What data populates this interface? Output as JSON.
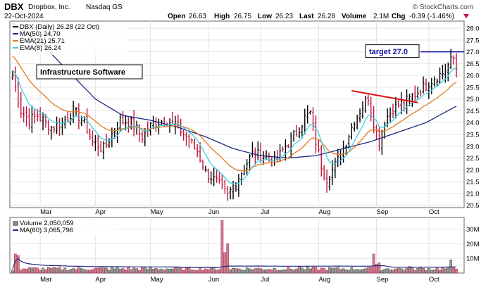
{
  "header": {
    "symbol": "DBX",
    "company": "Dropbox, Inc.",
    "exchange": "Nasdaq GS",
    "date": "22-Oct-2024",
    "watermark": "© StockCharts.com",
    "quote": {
      "open_label": "Open",
      "open": "26.63",
      "high_label": "High",
      "high": "26.75",
      "low_label": "Low",
      "low": "26.23",
      "last_label": "Last",
      "last": "26.28",
      "volume_label": "Volume",
      "volume": "2.1M",
      "chg_label": "Chg",
      "chg": "-0.39 (-1.46%)"
    }
  },
  "legend": [
    {
      "label": "DBX (Daily) 26.28 (22 Oct)",
      "color": "#000000"
    },
    {
      "label": "MA(50) 24.70",
      "color": "#1f2a80"
    },
    {
      "label": "EMA(21) 25.71",
      "color": "#e07a20"
    },
    {
      "label": "EMA(8) 26.24",
      "color": "#3ccfe0"
    }
  ],
  "annotations": {
    "infra_label": "Infrastructure Software",
    "target_label": "target 27.0"
  },
  "volume_legend": [
    {
      "label": "Volume 2,050,059",
      "color": "#000000"
    },
    {
      "label": "MA(60) 3,065,796",
      "color": "#1f2a80"
    }
  ],
  "colors": {
    "up": "#000000",
    "down": "#c0143c",
    "ma50": "#1f2a80",
    "ema21": "#e07a20",
    "ema8": "#3ccfe0",
    "trendline": "#e01010",
    "target_line": "#1010a0"
  },
  "chart_data": {
    "type": "ohlc",
    "price_axis": {
      "ylim": [
        20.4,
        28.3
      ],
      "ticks": [
        "20.5",
        "21.0",
        "21.5",
        "22.0",
        "22.5",
        "23.0",
        "23.5",
        "24.0",
        "24.5",
        "25.0",
        "25.5",
        "26.0",
        "26.5",
        "27.0",
        "27.5",
        "28.0"
      ]
    },
    "volume_axis": {
      "ylim": [
        0,
        38
      ],
      "ticks": [
        "10M",
        "20M",
        "30M"
      ]
    },
    "months": [
      "Mar",
      "Apr",
      "May",
      "Jun",
      "Jul",
      "Aug",
      "Sep",
      "Oct"
    ],
    "month_start_index": [
      10,
      30,
      50,
      71,
      90,
      111,
      132,
      151
    ],
    "n_sessions": 162,
    "close_anchors": [
      [
        0,
        26.0
      ],
      [
        3,
        24.5
      ],
      [
        6,
        24.1
      ],
      [
        9,
        24.3
      ],
      [
        14,
        23.8
      ],
      [
        18,
        24.0
      ],
      [
        22,
        24.5
      ],
      [
        26,
        24.0
      ],
      [
        29,
        23.2
      ],
      [
        33,
        22.9
      ],
      [
        36,
        23.5
      ],
      [
        39,
        24.1
      ],
      [
        43,
        24.0
      ],
      [
        47,
        23.4
      ],
      [
        51,
        24.0
      ],
      [
        56,
        24.1
      ],
      [
        60,
        23.8
      ],
      [
        63,
        23.4
      ],
      [
        67,
        22.8
      ],
      [
        70,
        21.9
      ],
      [
        74,
        21.5
      ],
      [
        76,
        21.2
      ],
      [
        78,
        20.9
      ],
      [
        81,
        21.5
      ],
      [
        84,
        22.1
      ],
      [
        87,
        22.7
      ],
      [
        91,
        22.6
      ],
      [
        95,
        22.3
      ],
      [
        99,
        23.0
      ],
      [
        103,
        23.6
      ],
      [
        106,
        24.2
      ],
      [
        108,
        24.4
      ],
      [
        110,
        23.2
      ],
      [
        112,
        22.2
      ],
      [
        114,
        21.6
      ],
      [
        116,
        22.0
      ],
      [
        118,
        22.4
      ],
      [
        121,
        23.2
      ],
      [
        124,
        24.1
      ],
      [
        127,
        24.7
      ],
      [
        129,
        25.1
      ],
      [
        131,
        24.0
      ],
      [
        133,
        23.2
      ],
      [
        135,
        24.1
      ],
      [
        138,
        24.6
      ],
      [
        141,
        24.8
      ],
      [
        144,
        25.0
      ],
      [
        147,
        25.3
      ],
      [
        150,
        25.6
      ],
      [
        153,
        25.9
      ],
      [
        156,
        26.1
      ],
      [
        159,
        26.6
      ],
      [
        160,
        26.7
      ],
      [
        161,
        26.28
      ]
    ],
    "series": [
      {
        "name": "DBX (Daily)",
        "last": 26.28
      },
      {
        "name": "MA(50)",
        "last": 24.7,
        "anchors": [
          [
            0,
            28.2
          ],
          [
            10,
            27.4
          ],
          [
            20,
            26.2
          ],
          [
            30,
            25.0
          ],
          [
            40,
            24.3
          ],
          [
            50,
            24.1
          ],
          [
            60,
            23.8
          ],
          [
            70,
            23.4
          ],
          [
            80,
            22.9
          ],
          [
            90,
            22.6
          ],
          [
            100,
            22.5
          ],
          [
            110,
            22.6
          ],
          [
            120,
            22.9
          ],
          [
            130,
            23.2
          ],
          [
            140,
            23.6
          ],
          [
            150,
            24.0
          ],
          [
            161,
            24.7
          ]
        ]
      },
      {
        "name": "EMA(21)",
        "last": 25.71
      },
      {
        "name": "EMA(8)",
        "last": 26.24
      }
    ],
    "volume": {
      "name": "Volume",
      "last": 2050059,
      "ma60": 3065796,
      "typical_millions": 2.8,
      "spikes_millions": [
        [
          1,
          13
        ],
        [
          2,
          12
        ],
        [
          76,
          36
        ],
        [
          77,
          14
        ],
        [
          78,
          20
        ],
        [
          104,
          4.5
        ],
        [
          131,
          13
        ],
        [
          132,
          6
        ],
        [
          133,
          7
        ],
        [
          144,
          4.5
        ],
        [
          159,
          9
        ]
      ]
    },
    "trendline": {
      "from": [
        123,
        25.35
      ],
      "to": [
        147,
        24.85
      ]
    },
    "target": {
      "value": 27.0,
      "from_index": 148
    }
  }
}
